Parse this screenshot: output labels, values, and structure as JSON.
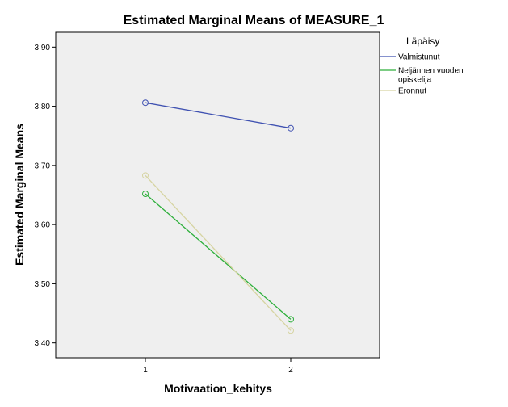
{
  "chart_data": {
    "type": "line",
    "title": "Estimated Marginal Means of MEASURE_1",
    "xlabel": "Motivaation_kehitys",
    "ylabel": "Estimated Marginal Means",
    "categories": [
      "1",
      "2"
    ],
    "ylim": [
      3.375,
      3.925
    ],
    "yticks": [
      3.4,
      3.5,
      3.6,
      3.7,
      3.8,
      3.9
    ],
    "ytick_labels": [
      "3,40",
      "3,50",
      "3,60",
      "3,70",
      "3,80",
      "3,90"
    ],
    "grid": false,
    "legend": {
      "title": "Läpäisy",
      "placement": "right",
      "entries": [
        {
          "lines": [
            "Valmistunut"
          ]
        },
        {
          "lines": [
            "Neljännen vuoden",
            "opiskelija"
          ]
        },
        {
          "lines": [
            "Eronnut"
          ]
        }
      ]
    },
    "series": [
      {
        "name": "Valmistunut",
        "values": [
          3.806,
          3.763
        ],
        "color": "#3f51b1"
      },
      {
        "name": "Neljännen vuoden opiskelija",
        "values": [
          3.652,
          3.44
        ],
        "color": "#2eaf3b"
      },
      {
        "name": "Eronnut",
        "values": [
          3.683,
          3.421
        ],
        "color": "#d6d4a2"
      }
    ],
    "plot_background": "#efefef"
  }
}
